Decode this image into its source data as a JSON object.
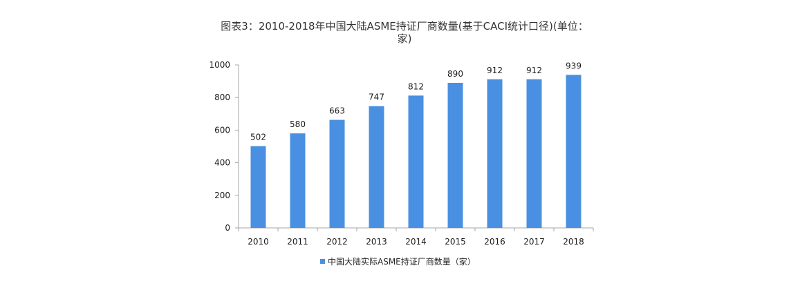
{
  "chart_data": {
    "type": "bar",
    "title": "图表3：2010-2018年中国大陆ASME持证厂商数量(基于CACI统计口径)(单位：家)",
    "categories": [
      "2010",
      "2011",
      "2012",
      "2013",
      "2014",
      "2015",
      "2016",
      "2017",
      "2018"
    ],
    "series": [
      {
        "name": "中国大陆实际ASME持证厂商数量（家）",
        "values": [
          502,
          580,
          663,
          747,
          812,
          890,
          912,
          912,
          939
        ]
      }
    ],
    "data_labels": [
      "502",
      "580",
      "663",
      "747",
      "812",
      "890",
      "912",
      "912",
      "939"
    ],
    "ylim": [
      0,
      1000
    ],
    "yticks": [
      0,
      200,
      400,
      600,
      800,
      1000
    ],
    "xlabel": "",
    "ylabel": "",
    "grid": false,
    "legend_position": "bottom-center",
    "bar_color": "#4a90e2"
  }
}
